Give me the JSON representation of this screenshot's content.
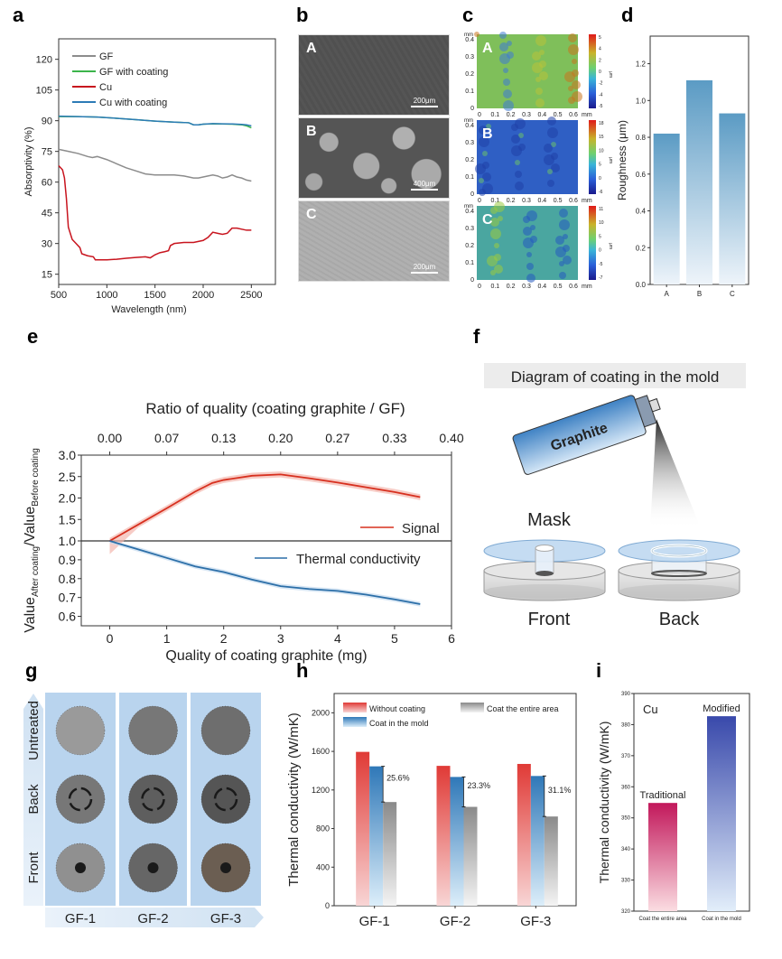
{
  "panels": {
    "a": "a",
    "b": "b",
    "c": "c",
    "d": "d",
    "e": "e",
    "f": "f",
    "g": "g",
    "h": "h",
    "i": "i"
  },
  "chart_data": [
    {
      "id": "a",
      "type": "line",
      "title": "",
      "xlabel": "Wavelength (nm)",
      "ylabel": "Absorptivity (%)",
      "xlim": [
        500,
        2750
      ],
      "ylim": [
        10,
        130
      ],
      "xticks": [
        500,
        1000,
        1500,
        2000,
        2500
      ],
      "yticks": [
        15,
        30,
        45,
        60,
        75,
        90,
        105,
        120
      ],
      "legend": "top-left",
      "series": [
        {
          "name": "GF",
          "color": "#8c8c8c",
          "x": [
            500,
            600,
            700,
            800,
            850,
            900,
            1000,
            1100,
            1200,
            1300,
            1400,
            1500,
            1600,
            1700,
            1800,
            1900,
            1950,
            2000,
            2050,
            2100,
            2150,
            2200,
            2250,
            2300,
            2350,
            2400,
            2450,
            2500
          ],
          "y": [
            76,
            75,
            74,
            72.5,
            72,
            72.5,
            71,
            69,
            67,
            65.5,
            64,
            63.5,
            63.5,
            63.5,
            63,
            62,
            62,
            62.5,
            63,
            63.5,
            63,
            62,
            62.5,
            63.5,
            62.5,
            62,
            61,
            60.5
          ]
        },
        {
          "name": "GF with coating",
          "color": "#3cb44b",
          "x": [
            500,
            700,
            900,
            1100,
            1300,
            1500,
            1700,
            1850,
            1900,
            1950,
            2000,
            2100,
            2200,
            2300,
            2400,
            2450,
            2500
          ],
          "y": [
            92,
            92,
            91.8,
            91.2,
            90.5,
            89.8,
            89.3,
            89,
            88,
            88,
            88.3,
            88.5,
            88.4,
            88.3,
            88,
            87.5,
            86.5
          ]
        },
        {
          "name": "Cu",
          "color": "#c8141e",
          "x": [
            500,
            540,
            560,
            580,
            600,
            640,
            680,
            720,
            740,
            800,
            860,
            880,
            900,
            1000,
            1100,
            1200,
            1300,
            1400,
            1450,
            1500,
            1550,
            1600,
            1640,
            1660,
            1700,
            1800,
            1900,
            2000,
            2050,
            2100,
            2150,
            2200,
            2250,
            2300,
            2350,
            2400,
            2450,
            2500
          ],
          "y": [
            68,
            66,
            62,
            52,
            38,
            32,
            30,
            28,
            25,
            24,
            23.5,
            22,
            22,
            22,
            22.3,
            22.8,
            23.2,
            23.5,
            23,
            24.5,
            25.5,
            26,
            26.5,
            29,
            30,
            30.5,
            30.5,
            31.5,
            33,
            35.5,
            35,
            34.5,
            35,
            37.5,
            37.5,
            37,
            36.5,
            36.5
          ]
        },
        {
          "name": "Cu with coating",
          "color": "#2c7bb6",
          "x": [
            500,
            700,
            900,
            1100,
            1300,
            1500,
            1700,
            1850,
            1900,
            1950,
            2000,
            2100,
            2200,
            2300,
            2400,
            2450,
            2500
          ],
          "y": [
            92.2,
            92,
            91.8,
            91.2,
            90.5,
            89.8,
            89.3,
            89,
            88,
            88,
            88.3,
            88.6,
            88.5,
            88.4,
            88.2,
            88,
            87.5
          ]
        }
      ]
    },
    {
      "id": "d",
      "type": "bar",
      "title": "",
      "xlabel": "",
      "ylabel": "Roughness (μm)",
      "categories": [
        "A",
        "B",
        "C"
      ],
      "values": [
        0.82,
        1.11,
        0.93
      ],
      "ylim": [
        0,
        1.35
      ],
      "yticks": [
        0.0,
        0.2,
        0.4,
        0.6,
        0.8,
        1.0,
        1.2
      ],
      "bar_color": "#5b9bc4"
    },
    {
      "id": "e",
      "type": "line",
      "title": "",
      "xlabel": "Quality of coating graphite (mg)",
      "x2label": "Ratio of quality (coating graphite / GF)",
      "ylabel_main": "Value",
      "ylabel_sub1": "After coating",
      "ylabel_sep": "/Value",
      "ylabel_sub2": "Before coating",
      "xlim": [
        -0.5,
        6
      ],
      "xticks": [
        0,
        1,
        2,
        3,
        4,
        5,
        6
      ],
      "x2ticks": [
        "0.00",
        "0.07",
        "0.13",
        "0.20",
        "0.27",
        "0.33",
        "0.40"
      ],
      "yticks_upper": [
        "1.0",
        "1.5",
        "2.0",
        "2.5",
        "3.0"
      ],
      "yticks_lower": [
        "0.6",
        "0.7",
        "0.8",
        "0.9"
      ],
      "upper_ylim": [
        1.0,
        3.0
      ],
      "lower_ylim": [
        0.55,
        1.0
      ],
      "baseline": 1.0,
      "legend": "right",
      "series": [
        {
          "name": "Signal",
          "color": "#d7301f",
          "band_color": "#f4b6ae",
          "x": [
            0,
            0.5,
            1,
            1.5,
            1.8,
            2,
            2.5,
            3,
            3.5,
            4,
            4.5,
            5,
            5.45
          ],
          "y": [
            1.0,
            1.38,
            1.76,
            2.15,
            2.35,
            2.42,
            2.52,
            2.55,
            2.46,
            2.36,
            2.25,
            2.14,
            2.02
          ],
          "band": 0.07
        },
        {
          "name": "Thermal conductivity",
          "color": "#2c6fa8",
          "band_color": "#c6dcf0",
          "x": [
            0,
            0.5,
            1,
            1.5,
            2,
            2.5,
            3,
            3.5,
            4,
            4.5,
            5,
            5.45
          ],
          "y": [
            1.0,
            0.955,
            0.91,
            0.865,
            0.835,
            0.795,
            0.76,
            0.745,
            0.735,
            0.715,
            0.69,
            0.665
          ],
          "band": 0.025
        }
      ]
    },
    {
      "id": "h",
      "type": "bar",
      "title": "",
      "xlabel": "",
      "ylabel": "Thermal conductivity (W/mK)",
      "categories": [
        "GF-1",
        "GF-2",
        "GF-3"
      ],
      "ylim": [
        0,
        2200
      ],
      "yticks": [
        0,
        400,
        800,
        1200,
        1600,
        2000
      ],
      "legend": "top",
      "series": [
        {
          "name": "Without coating",
          "color": "#e03a36",
          "values": [
            1595,
            1450,
            1470
          ]
        },
        {
          "name": "Coat in the mold",
          "color": "#2f78b8",
          "values": [
            1445,
            1335,
            1345
          ]
        },
        {
          "name": "Coat the entire area",
          "color": "#8a8a8a",
          "values": [
            1075,
            1025,
            925
          ]
        }
      ],
      "annotations": [
        "25.6%",
        "23.3%",
        "31.1%"
      ]
    },
    {
      "id": "i",
      "type": "bar",
      "title": "",
      "xlabel": "",
      "ylabel": "Thermal conductivity (W/mK)",
      "categories": [
        "Coat the entire area",
        "Coat in the mold"
      ],
      "values": [
        354.8,
        382.7
      ],
      "bar_labels": [
        "Traditional",
        "Modified"
      ],
      "bar_colors": [
        "#c2185b",
        "#3949ab"
      ],
      "ylim": [
        320,
        390
      ],
      "yticks": [
        320,
        330,
        340,
        350,
        360,
        370,
        380,
        390
      ],
      "annotation": "Cu"
    }
  ],
  "sem_images": [
    {
      "label": "A",
      "scale": "200μm"
    },
    {
      "label": "B",
      "scale": "400μm"
    },
    {
      "label": "C",
      "scale": "200μm"
    }
  ],
  "profilometry": {
    "maps": [
      {
        "label": "A",
        "cbar_ticks": [
          "5",
          "4",
          "2",
          "0",
          "-2",
          "-4",
          "-5"
        ]
      },
      {
        "label": "B",
        "cbar_ticks": [
          "18",
          "15",
          "10",
          "5",
          "0",
          "-6"
        ]
      },
      {
        "label": "C",
        "cbar_ticks": [
          "11",
          "10",
          "5",
          "0",
          "-5",
          "-7"
        ]
      }
    ],
    "xticks": [
      "0",
      "0.1",
      "0.2",
      "0.3",
      "0.4",
      "0.5",
      "0.6"
    ],
    "yticks": [
      "0",
      "0.1",
      "0.2",
      "0.3",
      "0.4"
    ],
    "unit": "mm",
    "cbar_unit": "μm"
  },
  "diagram": {
    "title": "Diagram of coating in the mold",
    "can_label": "Graphite",
    "mask_label": "Mask",
    "front_label": "Front",
    "back_label": "Back"
  },
  "photos": {
    "rows": [
      "Untreated",
      "Back",
      "Front"
    ],
    "cols": [
      "GF-1",
      "GF-2",
      "GF-3"
    ]
  }
}
